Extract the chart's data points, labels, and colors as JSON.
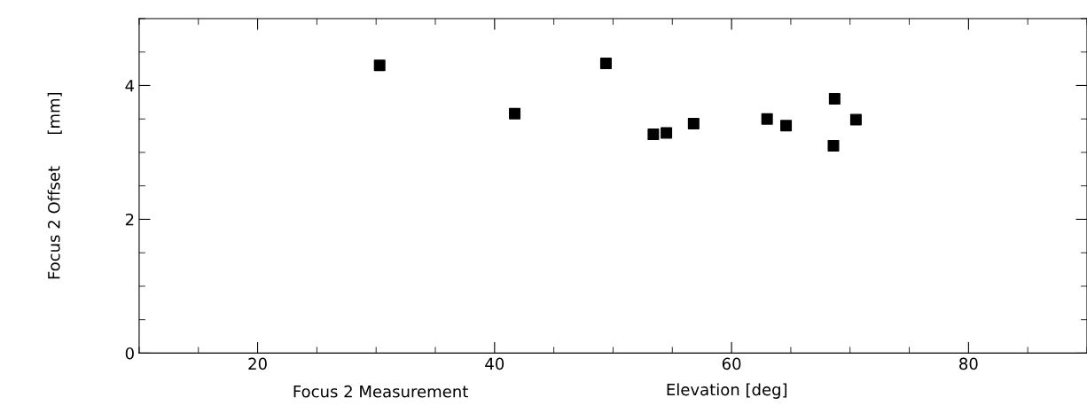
{
  "chart_data": {
    "type": "scatter",
    "title": "Focus 2 Measurement",
    "xlabel": "Elevation [deg]",
    "ylabel": "Focus 2 Offset      [mm]",
    "x": [
      30.3,
      41.7,
      49.4,
      53.4,
      54.5,
      56.8,
      63.0,
      64.6,
      68.7,
      68.6,
      70.5
    ],
    "series": [
      {
        "color": "#000000",
        "values": [
          4.3,
          3.58,
          4.33,
          3.27,
          3.29,
          3.43,
          3.5,
          3.4,
          3.8,
          3.1,
          3.49
        ]
      }
    ],
    "xlim": [
      10,
      90
    ],
    "ylim": [
      0,
      5
    ],
    "xticks": [
      20,
      40,
      60,
      80
    ],
    "yticks": [
      0,
      2,
      4
    ],
    "marker": "square",
    "grid": false
  }
}
